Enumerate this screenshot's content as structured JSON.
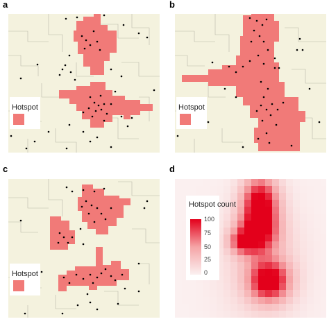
{
  "panels": [
    {
      "id": "a",
      "label": "a",
      "legend": "Hotspot"
    },
    {
      "id": "b",
      "label": "b",
      "legend": "Hotspot"
    },
    {
      "id": "c",
      "label": "c",
      "legend": "Hotspot"
    },
    {
      "id": "d",
      "label": "d",
      "legend_title": "Hotspot count",
      "legend_ticks": [
        "100",
        "75",
        "50",
        "25",
        "0"
      ]
    }
  ],
  "colors": {
    "background": "#f4f2de",
    "hotspot": "#f17a78",
    "border": "#aaaaaa",
    "point": "#000000"
  }
}
